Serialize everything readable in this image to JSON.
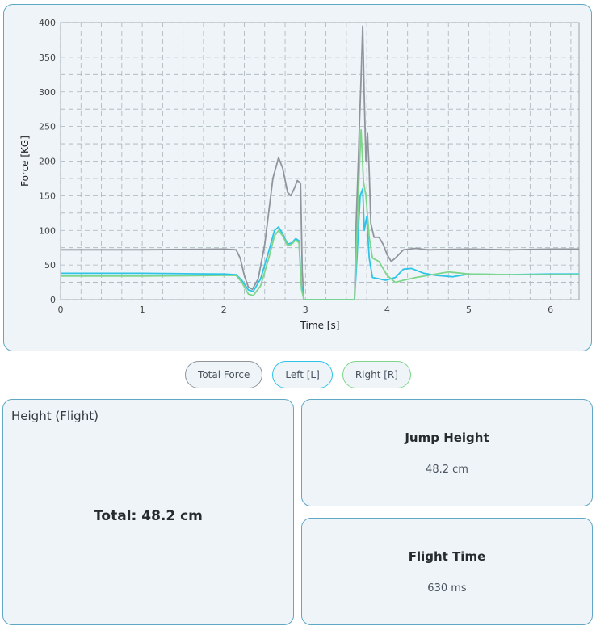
{
  "chart_data": {
    "type": "line",
    "xlabel": "Time [s]",
    "ylabel": "Force [KG]",
    "xlim": [
      0,
      6.35
    ],
    "ylim": [
      0,
      400
    ],
    "grid": true,
    "x_ticks": [
      "0",
      "1",
      "2",
      "3",
      "4",
      "5",
      "6"
    ],
    "y_ticks": [
      "0",
      "50",
      "100",
      "150",
      "200",
      "250",
      "300",
      "350",
      "400"
    ],
    "series": [
      {
        "name": "Total Force",
        "color": "#8e959c",
        "points": [
          [
            0,
            72
          ],
          [
            1,
            72
          ],
          [
            2,
            73
          ],
          [
            2.15,
            72
          ],
          [
            2.2,
            60
          ],
          [
            2.25,
            35
          ],
          [
            2.3,
            18
          ],
          [
            2.35,
            15
          ],
          [
            2.42,
            30
          ],
          [
            2.5,
            80
          ],
          [
            2.6,
            175
          ],
          [
            2.67,
            205
          ],
          [
            2.72,
            190
          ],
          [
            2.78,
            155
          ],
          [
            2.82,
            150
          ],
          [
            2.86,
            160
          ],
          [
            2.9,
            172
          ],
          [
            2.94,
            168
          ],
          [
            2.96,
            40
          ],
          [
            2.98,
            0
          ],
          [
            3.6,
            0
          ],
          [
            3.62,
            110
          ],
          [
            3.65,
            210
          ],
          [
            3.66,
            250
          ],
          [
            3.68,
            320
          ],
          [
            3.7,
            395
          ],
          [
            3.72,
            290
          ],
          [
            3.74,
            200
          ],
          [
            3.76,
            240
          ],
          [
            3.78,
            185
          ],
          [
            3.8,
            110
          ],
          [
            3.84,
            90
          ],
          [
            3.9,
            90
          ],
          [
            3.95,
            80
          ],
          [
            4.0,
            65
          ],
          [
            4.05,
            55
          ],
          [
            4.1,
            60
          ],
          [
            4.2,
            72
          ],
          [
            4.35,
            74
          ],
          [
            4.5,
            72
          ],
          [
            5,
            73
          ],
          [
            5.5,
            72
          ],
          [
            6,
            73
          ],
          [
            6.35,
            73
          ]
        ]
      },
      {
        "name": "Left [L]",
        "color": "#2ec4e8",
        "points": [
          [
            0,
            38
          ],
          [
            1,
            38
          ],
          [
            2,
            37
          ],
          [
            2.15,
            36
          ],
          [
            2.22,
            28
          ],
          [
            2.3,
            14
          ],
          [
            2.36,
            12
          ],
          [
            2.45,
            30
          ],
          [
            2.55,
            70
          ],
          [
            2.62,
            100
          ],
          [
            2.67,
            105
          ],
          [
            2.72,
            95
          ],
          [
            2.78,
            80
          ],
          [
            2.83,
            82
          ],
          [
            2.88,
            88
          ],
          [
            2.92,
            85
          ],
          [
            2.95,
            20
          ],
          [
            2.98,
            0
          ],
          [
            3.6,
            0
          ],
          [
            3.63,
            60
          ],
          [
            3.67,
            150
          ],
          [
            3.7,
            160
          ],
          [
            3.72,
            100
          ],
          [
            3.75,
            120
          ],
          [
            3.78,
            60
          ],
          [
            3.82,
            32
          ],
          [
            3.9,
            30
          ],
          [
            3.98,
            28
          ],
          [
            4.1,
            32
          ],
          [
            4.2,
            44
          ],
          [
            4.3,
            45
          ],
          [
            4.45,
            38
          ],
          [
            4.6,
            35
          ],
          [
            4.8,
            33
          ],
          [
            5,
            37
          ],
          [
            5.5,
            36
          ],
          [
            6,
            37
          ],
          [
            6.35,
            37
          ]
        ]
      },
      {
        "name": "Right [R]",
        "color": "#7fd68a",
        "points": [
          [
            0,
            34
          ],
          [
            1,
            34
          ],
          [
            2,
            35
          ],
          [
            2.15,
            35
          ],
          [
            2.22,
            25
          ],
          [
            2.3,
            8
          ],
          [
            2.36,
            6
          ],
          [
            2.45,
            20
          ],
          [
            2.55,
            60
          ],
          [
            2.62,
            92
          ],
          [
            2.67,
            100
          ],
          [
            2.72,
            92
          ],
          [
            2.78,
            78
          ],
          [
            2.83,
            80
          ],
          [
            2.88,
            86
          ],
          [
            2.92,
            82
          ],
          [
            2.95,
            15
          ],
          [
            2.98,
            0
          ],
          [
            3.6,
            0
          ],
          [
            3.63,
            90
          ],
          [
            3.66,
            190
          ],
          [
            3.68,
            245
          ],
          [
            3.71,
            170
          ],
          [
            3.74,
            150
          ],
          [
            3.78,
            90
          ],
          [
            3.82,
            60
          ],
          [
            3.9,
            55
          ],
          [
            4.0,
            35
          ],
          [
            4.1,
            25
          ],
          [
            4.2,
            28
          ],
          [
            4.35,
            32
          ],
          [
            4.55,
            36
          ],
          [
            4.75,
            40
          ],
          [
            5,
            37
          ],
          [
            5.5,
            36
          ],
          [
            6,
            36
          ],
          [
            6.35,
            36
          ]
        ]
      }
    ]
  },
  "legend": {
    "total": "Total Force",
    "left": "Left [L]",
    "right": "Right [R]"
  },
  "height_card": {
    "title": "Height (Flight)",
    "total": "Total: 48.2 cm"
  },
  "jump_card": {
    "title": "Jump Height",
    "value": "48.2 cm"
  },
  "flight_card": {
    "title": "Flight Time",
    "value": "630 ms"
  }
}
